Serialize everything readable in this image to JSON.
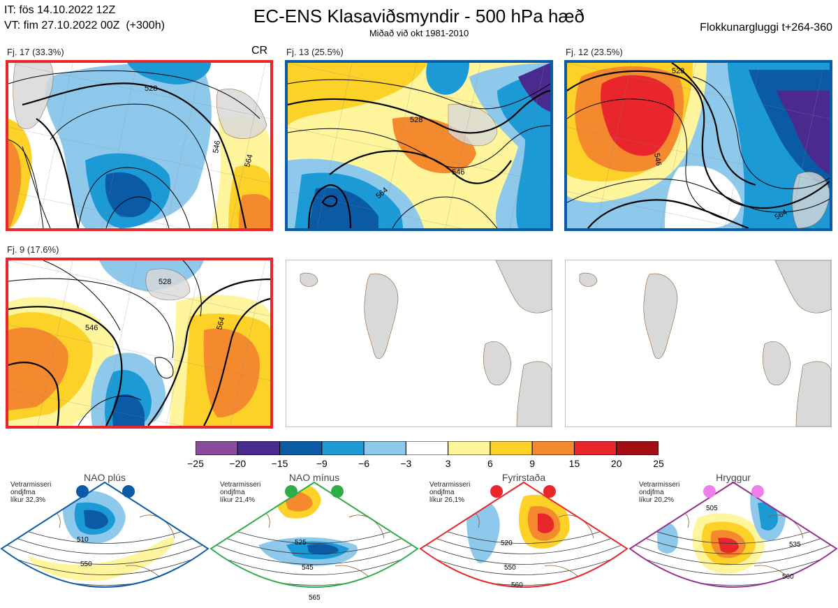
{
  "header": {
    "init_line": "IT: fös 14.10.2022 12Z",
    "valid_line": "VT: fim 27.10.2022 00Z  (+300h)",
    "title": "EC-ENS Klasaviðsmyndir - 500 hPa hæð",
    "subtitle": "Miðað við okt 1981-2010",
    "window": "Flokkunargluggi t+264-360"
  },
  "clusters": [
    {
      "label": "Fj. 17 (33.3%)",
      "tag": "CR",
      "frame_color": "#e8262b",
      "regime": "Fyrirstaða"
    },
    {
      "label": "Fj. 13 (25.5%)",
      "tag": "",
      "frame_color": "#0a5aa6",
      "regime": "NAO plús"
    },
    {
      "label": "Fj. 12 (23.5%)",
      "tag": "",
      "frame_color": "#0a5aa6",
      "regime": "NAO plús"
    },
    {
      "label": "Fj. 9 (17.6%)",
      "tag": "",
      "frame_color": "#e8262b",
      "regime": "Fyrirstaða"
    }
  ],
  "contour_labels": [
    "528",
    "546",
    "564"
  ],
  "colorbar": {
    "ticks": [
      "−25",
      "−20",
      "−15",
      "−9",
      "−6",
      "−3",
      "3",
      "6",
      "9",
      "15",
      "20",
      "25"
    ],
    "colors": [
      "#8a4b9f",
      "#4a2a8f",
      "#0a5aa6",
      "#1c9ad6",
      "#8ec9ec",
      "#ffffff",
      "#fff59c",
      "#fcd128",
      "#f4892d",
      "#e8262b",
      "#a30e14"
    ]
  },
  "regimes": [
    {
      "name": "NAO plús",
      "line1": "Vetrarmisseri",
      "line2": "ondjfma",
      "line3": "líkur 32,3%",
      "color": "#0a5aa6",
      "dot_color": "#0a5aa6",
      "contours": [
        "510",
        "550"
      ]
    },
    {
      "name": "NAO mínus",
      "line1": "Vetrarmisseri",
      "line2": "ondjfma",
      "line3": "líkur 21,4%",
      "color": "#2fac48",
      "dot_color": "#2fac48",
      "contours": [
        "525",
        "545",
        "565"
      ]
    },
    {
      "name": "Fyrirstaða",
      "line1": "Vetrarmisseri",
      "line2": "ondjfma",
      "line3": "líkur 26,1%",
      "color": "#e8262b",
      "dot_color": "#e8262b",
      "contours": [
        "520",
        "550",
        "560"
      ]
    },
    {
      "name": "Hryggur",
      "line1": "Vetrarmisseri",
      "line2": "ondjfma",
      "line3": "líkur 20,2%",
      "color": "#962d91",
      "dot_color": "#ee7fe8",
      "contours": [
        "505",
        "535",
        "560"
      ]
    }
  ]
}
